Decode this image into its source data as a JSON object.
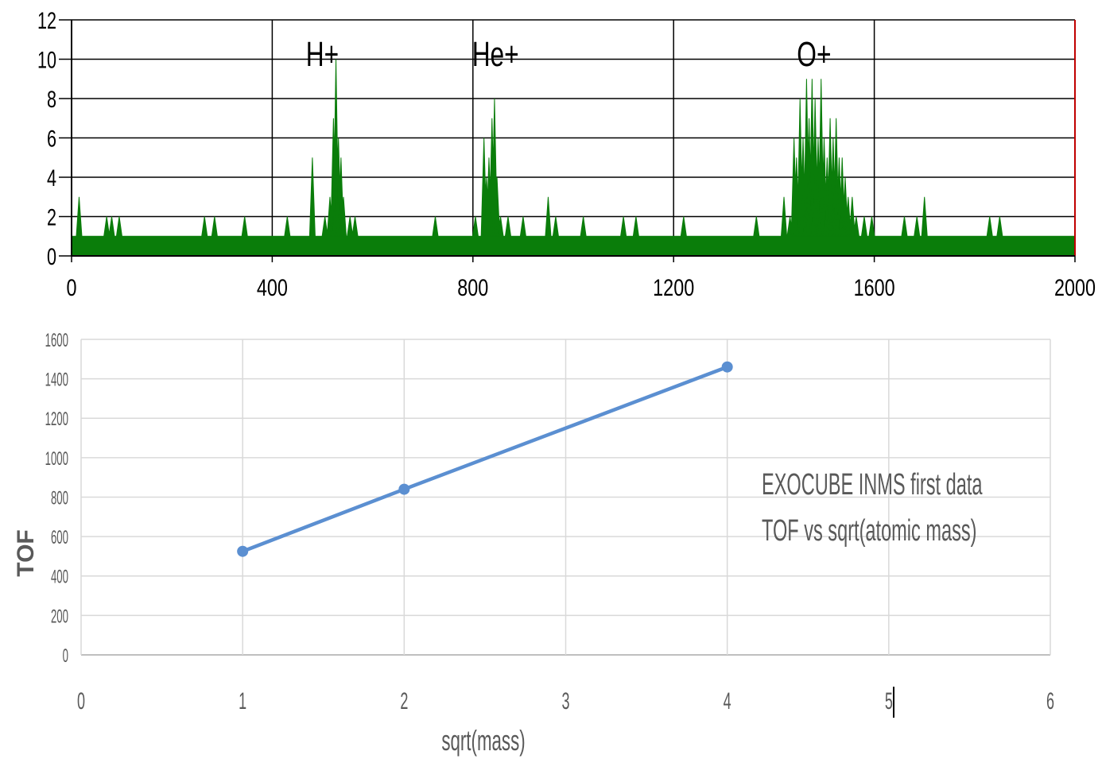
{
  "chart_data": [
    {
      "type": "area",
      "title": "",
      "xlabel": "",
      "ylabel": "",
      "xlim": [
        0,
        2000
      ],
      "ylim": [
        0,
        12
      ],
      "x_ticks": [
        0,
        400,
        800,
        1200,
        1600,
        2000
      ],
      "y_ticks": [
        0,
        2,
        4,
        6,
        8,
        10,
        12
      ],
      "x_tick_labels": [
        "0",
        "400",
        "800",
        "1200",
        "1600",
        "2000"
      ],
      "y_tick_labels": [
        "0",
        "2",
        "4",
        "6",
        "8",
        "10",
        "12"
      ],
      "grid": true,
      "fill_color": "#0a7d0a",
      "baseline": 1,
      "annotations": [
        {
          "text": "H+",
          "x": 500,
          "y": 10.5
        },
        {
          "text": "He+",
          "x": 845,
          "y": 10.5
        },
        {
          "text": "O+",
          "x": 1480,
          "y": 10.5
        }
      ],
      "spikes": [
        {
          "x": 15,
          "y": 3
        },
        {
          "x": 70,
          "y": 2
        },
        {
          "x": 80,
          "y": 2
        },
        {
          "x": 95,
          "y": 2
        },
        {
          "x": 265,
          "y": 2
        },
        {
          "x": 285,
          "y": 2
        },
        {
          "x": 345,
          "y": 2
        },
        {
          "x": 430,
          "y": 2
        },
        {
          "x": 480,
          "y": 5
        },
        {
          "x": 505,
          "y": 2
        },
        {
          "x": 515,
          "y": 3
        },
        {
          "x": 522,
          "y": 7
        },
        {
          "x": 527,
          "y": 10
        },
        {
          "x": 532,
          "y": 6
        },
        {
          "x": 537,
          "y": 5
        },
        {
          "x": 542,
          "y": 3
        },
        {
          "x": 555,
          "y": 2
        },
        {
          "x": 565,
          "y": 2
        },
        {
          "x": 725,
          "y": 2
        },
        {
          "x": 805,
          "y": 2
        },
        {
          "x": 822,
          "y": 6
        },
        {
          "x": 827,
          "y": 4
        },
        {
          "x": 832,
          "y": 5
        },
        {
          "x": 838,
          "y": 7
        },
        {
          "x": 843,
          "y": 8
        },
        {
          "x": 848,
          "y": 4
        },
        {
          "x": 855,
          "y": 2
        },
        {
          "x": 870,
          "y": 2
        },
        {
          "x": 900,
          "y": 2
        },
        {
          "x": 950,
          "y": 3
        },
        {
          "x": 965,
          "y": 2
        },
        {
          "x": 1020,
          "y": 2
        },
        {
          "x": 1100,
          "y": 2
        },
        {
          "x": 1125,
          "y": 2
        },
        {
          "x": 1220,
          "y": 2
        },
        {
          "x": 1365,
          "y": 2
        },
        {
          "x": 1420,
          "y": 3
        },
        {
          "x": 1432,
          "y": 2
        },
        {
          "x": 1440,
          "y": 6
        },
        {
          "x": 1445,
          "y": 5
        },
        {
          "x": 1452,
          "y": 8
        },
        {
          "x": 1458,
          "y": 6
        },
        {
          "x": 1465,
          "y": 9
        },
        {
          "x": 1470,
          "y": 7
        },
        {
          "x": 1476,
          "y": 9
        },
        {
          "x": 1482,
          "y": 8
        },
        {
          "x": 1488,
          "y": 6
        },
        {
          "x": 1494,
          "y": 9
        },
        {
          "x": 1500,
          "y": 6
        },
        {
          "x": 1506,
          "y": 5
        },
        {
          "x": 1512,
          "y": 7
        },
        {
          "x": 1518,
          "y": 6
        },
        {
          "x": 1524,
          "y": 7
        },
        {
          "x": 1530,
          "y": 5
        },
        {
          "x": 1536,
          "y": 5
        },
        {
          "x": 1542,
          "y": 4
        },
        {
          "x": 1548,
          "y": 3
        },
        {
          "x": 1556,
          "y": 3
        },
        {
          "x": 1564,
          "y": 2
        },
        {
          "x": 1580,
          "y": 2
        },
        {
          "x": 1595,
          "y": 2
        },
        {
          "x": 1660,
          "y": 2
        },
        {
          "x": 1685,
          "y": 2
        },
        {
          "x": 1700,
          "y": 3
        },
        {
          "x": 1830,
          "y": 2
        },
        {
          "x": 1850,
          "y": 2
        }
      ]
    },
    {
      "type": "line",
      "title": "",
      "xlabel": "sqrt(mass)",
      "ylabel": "TOF",
      "xlim": [
        0,
        6
      ],
      "ylim": [
        0,
        1600
      ],
      "x_ticks": [
        0,
        1,
        2,
        3,
        4,
        5,
        6
      ],
      "y_ticks": [
        0,
        200,
        400,
        600,
        800,
        1000,
        1200,
        1400,
        1600
      ],
      "x_tick_labels": [
        "0",
        "1",
        "2",
        "3",
        "4",
        "5",
        "6"
      ],
      "y_tick_labels": [
        "0",
        "200",
        "400",
        "600",
        "800",
        "1000",
        "1200",
        "1400",
        "1600"
      ],
      "grid": true,
      "line_color": "#5b8fd1",
      "series": [
        {
          "x": [
            1,
            2,
            4
          ],
          "values": [
            525,
            840,
            1460
          ]
        }
      ],
      "annotation_lines": [
        "EXOCUBE INMS first data",
        "TOF vs sqrt(atomic mass)"
      ]
    }
  ]
}
